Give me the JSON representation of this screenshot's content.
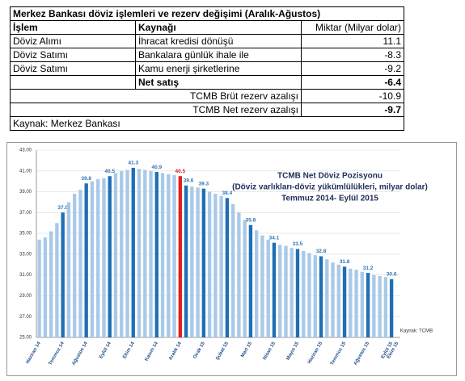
{
  "table": {
    "title": "Merkez Bankası döviz işlemleri ve rezerv değişimi (Aralık-Ağustos)",
    "header": [
      "İşlem",
      "Kaynağı",
      "Miktar (Milyar dolar)"
    ],
    "rows": [
      [
        "Döviz Alımı",
        "İhracat kredisi dönüşü",
        11.1
      ],
      [
        "Döviz Satımı",
        "Bankalara günlük ihale ile",
        -8.3
      ],
      [
        "Döviz Satımı",
        "Kamu enerji şirketlerine",
        -9.2
      ]
    ],
    "net": {
      "label": "Net satış",
      "value": -6.4
    },
    "summary": [
      {
        "label": "TCMB Brüt rezerv azalışı",
        "value": -10.9
      },
      {
        "label": "TCMB Net rezerv azalışı",
        "value": -9.7
      }
    ],
    "source": "Kaynak: Merkez Bankası"
  },
  "chart_data": {
    "type": "bar",
    "title": "TCMB Net Döviz Pozisyonu",
    "subtitle": [
      "(Döviz varlıkları-döviz yükümlülükleri, milyar dolar)",
      "Temmuz 2014- Eylül 2015"
    ],
    "source": "Kaynak: TCMB",
    "categories": [
      "Haziran 14",
      null,
      null,
      null,
      "Temmuz 14",
      null,
      null,
      null,
      "Ağustos 14",
      null,
      null,
      null,
      "Eylül 14",
      null,
      null,
      null,
      "Ekim 14",
      null,
      null,
      null,
      "Kasım 14",
      null,
      null,
      null,
      "Aralık 14",
      null,
      null,
      null,
      "Ocak 15",
      null,
      null,
      null,
      "Şubat 15",
      null,
      null,
      null,
      "Mart 15",
      null,
      null,
      null,
      "Nisan 15",
      null,
      null,
      null,
      "Mayıs 15",
      null,
      null,
      null,
      "Haziran 15",
      null,
      null,
      null,
      "Temmuz 15",
      null,
      null,
      null,
      "Ağustos 15",
      null,
      null,
      null,
      "Eylül 15",
      "Ekim 15"
    ],
    "values": [
      34.4,
      34.6,
      35.2,
      36.0,
      37.0,
      38.0,
      38.8,
      39.2,
      39.8,
      40.0,
      40.2,
      40.3,
      40.5,
      40.8,
      41.0,
      41.1,
      41.3,
      41.2,
      41.1,
      41.0,
      40.9,
      40.8,
      40.7,
      40.6,
      40.5,
      39.6,
      39.5,
      39.4,
      39.3,
      39.0,
      38.8,
      38.6,
      38.4,
      37.8,
      37.0,
      36.3,
      35.8,
      35.3,
      34.8,
      34.4,
      34.1,
      33.9,
      33.8,
      33.6,
      33.5,
      33.3,
      33.1,
      32.9,
      32.8,
      32.5,
      32.2,
      32.0,
      31.8,
      31.6,
      31.5,
      31.3,
      31.2,
      31.0,
      30.9,
      30.8,
      30.6,
      null
    ],
    "value_labels": [
      null,
      null,
      null,
      null,
      "37.0",
      null,
      null,
      null,
      "39.8",
      null,
      null,
      null,
      "40.5",
      null,
      null,
      null,
      "41.3",
      null,
      null,
      null,
      "40.9",
      null,
      null,
      null,
      "40.5",
      "39.6",
      null,
      null,
      "39.3",
      null,
      null,
      null,
      "38.4",
      null,
      null,
      null,
      "35.8",
      null,
      null,
      null,
      "34.1",
      null,
      null,
      null,
      "33.5",
      null,
      null,
      null,
      "32.8",
      null,
      null,
      null,
      "31.8",
      null,
      null,
      null,
      "31.2",
      null,
      null,
      null,
      "30.6",
      null
    ],
    "colors": [
      "#a9c9e8",
      "#a9c9e8",
      "#a9c9e8",
      "#a9c9e8",
      "#1f6fb5",
      "#a9c9e8",
      "#a9c9e8",
      "#a9c9e8",
      "#1f6fb5",
      "#a9c9e8",
      "#a9c9e8",
      "#a9c9e8",
      "#1f6fb5",
      "#a9c9e8",
      "#a9c9e8",
      "#a9c9e8",
      "#1f6fb5",
      "#a9c9e8",
      "#a9c9e8",
      "#a9c9e8",
      "#1f6fb5",
      "#a9c9e8",
      "#a9c9e8",
      "#a9c9e8",
      "#e02020",
      "#1f6fb5",
      "#a9c9e8",
      "#a9c9e8",
      "#1f6fb5",
      "#a9c9e8",
      "#a9c9e8",
      "#a9c9e8",
      "#1f6fb5",
      "#a9c9e8",
      "#a9c9e8",
      "#a9c9e8",
      "#1f6fb5",
      "#a9c9e8",
      "#a9c9e8",
      "#a9c9e8",
      "#1f6fb5",
      "#a9c9e8",
      "#a9c9e8",
      "#a9c9e8",
      "#1f6fb5",
      "#a9c9e8",
      "#a9c9e8",
      "#a9c9e8",
      "#1f6fb5",
      "#a9c9e8",
      "#a9c9e8",
      "#a9c9e8",
      "#1f6fb5",
      "#a9c9e8",
      "#a9c9e8",
      "#a9c9e8",
      "#1f6fb5",
      "#a9c9e8",
      "#a9c9e8",
      "#a9c9e8",
      "#1f6fb5",
      "#a9c9e8"
    ],
    "ylim": [
      25,
      43
    ],
    "yticks": [
      {
        "value": 25,
        "label": "25.00"
      },
      {
        "value": 27,
        "label": "27.00"
      },
      {
        "value": 29,
        "label": "29.00"
      },
      {
        "value": 31,
        "label": "31.00"
      },
      {
        "value": 33,
        "label": "33.00"
      },
      {
        "value": 35,
        "label": "35.00"
      },
      {
        "value": 37,
        "label": "37.00"
      },
      {
        "value": 39,
        "label": "39.00"
      },
      {
        "value": 41,
        "label": "41.00"
      },
      {
        "value": 43,
        "label": "43.00"
      }
    ],
    "grid": true
  }
}
